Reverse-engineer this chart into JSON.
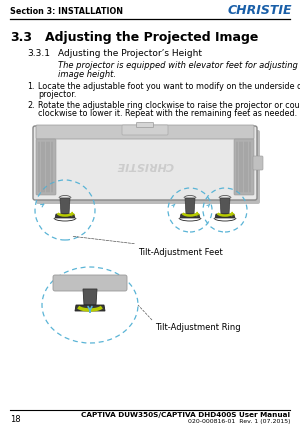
{
  "bg_color": "#ffffff",
  "header_section_text": "Section 3: INSTALLATION",
  "header_logo_text": "CHRISTIE",
  "section_num": "3.3",
  "section_title": "Adjusting the Projected Image",
  "subsection_num": "3.3.1",
  "subsection_title": "Adjusting the Projector’s Height",
  "italic_line1": "The projector is equipped with elevator feet for adjusting the",
  "italic_line2": "image height.",
  "item1_label": "1.",
  "item1_line1": "Locate the adjustable foot you want to modify on the underside of the",
  "item1_line2": "projector.",
  "item2_label": "2.",
  "item2_line1": "Rotate the adjustable ring clockwise to raise the projector or counter",
  "item2_line2": "clockwise to lower it. Repeat with the remaining feet as needed.",
  "label_feet": "Tilt-Adjustment Feet",
  "label_ring": "Tilt-Adjustment Ring",
  "footer_page": "18",
  "footer_title": "CAPTIVA DUW350S/CAPTIVA DHD400S User Manual",
  "footer_subtitle": "020-000816-01  Rev. 1 (07.2015)",
  "header_text_color": "#000000",
  "header_logo_color": "#1a5fa8",
  "body_text_color": "#000000",
  "line_color": "#000000",
  "dashed_circle_color": "#5ab4d6",
  "ring_color": "#b8cc00",
  "arrow_blue": "#5ab4d6",
  "proj_body": "#e8e8e8",
  "proj_top": "#c8c8c8",
  "proj_side": "#a8a8a8",
  "foot_dark": "#3a3a3a",
  "foot_mid": "#555555"
}
